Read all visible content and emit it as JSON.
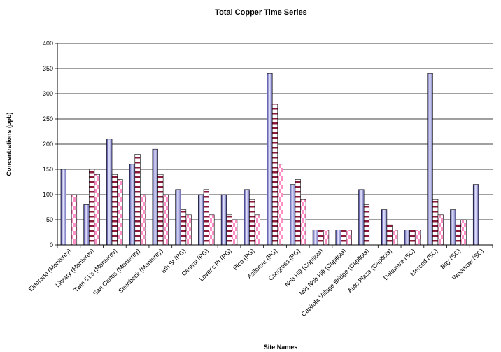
{
  "chart_data": {
    "type": "bar",
    "title": "Total Copper Time Series",
    "xlabel": "Site Names",
    "ylabel": "Concentrations (ppb)",
    "ylim": [
      0,
      400
    ],
    "yticks": [
      0,
      50,
      100,
      150,
      200,
      250,
      300,
      350,
      400
    ],
    "grid": true,
    "legend": "none",
    "categories": [
      "Eldorado (Monterey)",
      "Library (Monterey)",
      "Twin 51's (Monterey)",
      "San Carlos (Monterey)",
      "Steinbeck (Monterey)",
      "8th St (PG)",
      "Central (PG)",
      "Lover's Pt (PG)",
      "Pico (PG)",
      "Asilomar (PG)",
      "Congress (PG)",
      "Nob Hill (Capitola)",
      "Mid Nob Hill (Capitola)",
      "Capitola Village Bridge (Capitola)",
      "Auto Plaza (Capitola)",
      "Delaware (SC)",
      "Merced (SC)",
      "Bay (SC)",
      "Woodrow (SC)"
    ],
    "series": [
      {
        "style": "blue-gradient",
        "values": [
          150,
          80,
          210,
          160,
          190,
          110,
          100,
          100,
          110,
          340,
          120,
          30,
          30,
          110,
          70,
          30,
          340,
          70,
          120
        ]
      },
      {
        "style": "maroon-stripes",
        "values": [
          0,
          150,
          140,
          180,
          140,
          70,
          110,
          60,
          90,
          280,
          130,
          30,
          30,
          80,
          40,
          30,
          90,
          40,
          0
        ]
      },
      {
        "style": "pink-checker",
        "values": [
          100,
          140,
          130,
          100,
          100,
          60,
          60,
          50,
          60,
          160,
          90,
          30,
          30,
          0,
          30,
          30,
          60,
          50,
          0
        ]
      }
    ],
    "colors": {
      "blue": "#3a3a9a",
      "maroon": "#8b1a3a",
      "pink": "#ff8ec6",
      "grid": "#000000"
    }
  }
}
